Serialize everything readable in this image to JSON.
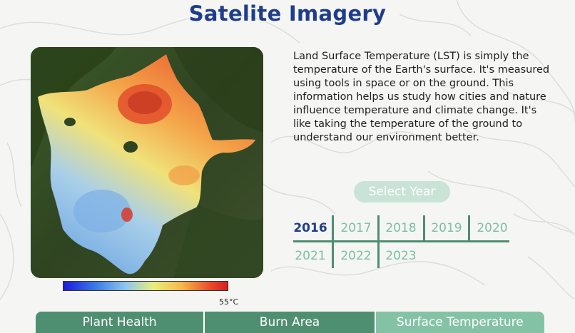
{
  "page": {
    "title": "Satelite Imagery"
  },
  "description": "Land Surface Temperature (LST) is simply the temperature of the Earth's surface. It's measured using tools in space or on the ground. This information helps us study how cities and nature influence temperature and climate change. It's like taking the temperature of the ground to understand our environment better.",
  "colorbar": {
    "max_label": "55°C",
    "colors": [
      "#1a1adb",
      "#3d7de6",
      "#8fc6ee",
      "#e8ef7d",
      "#f6b84a",
      "#e9492a",
      "#d6201f"
    ]
  },
  "year_selector": {
    "label": "Select Year",
    "selected": "2016",
    "years": [
      "2016",
      "2017",
      "2018",
      "2019",
      "2020",
      "2021",
      "2022",
      "2023"
    ]
  },
  "tabs": [
    {
      "label": "Plant Health",
      "active": false
    },
    {
      "label": "Burn Area",
      "active": false
    },
    {
      "label": "Surface Temperature",
      "active": true
    }
  ],
  "theme": {
    "title_color": "#1f3d8a",
    "accent_dark": "#4f8f71",
    "accent_light": "#84c2a6",
    "year_color": "#7cc0a3"
  }
}
